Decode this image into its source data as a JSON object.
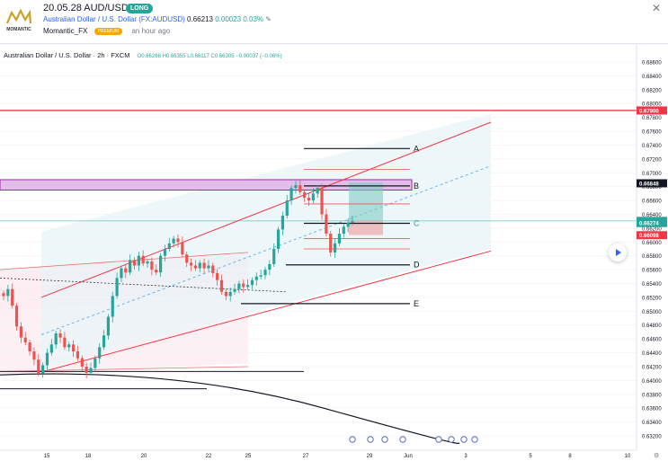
{
  "header": {
    "brand": "MOMANTIC",
    "title": "20.05.28 AUD/USD",
    "badge": "LONG",
    "symbol_name": "Australian Dollar / U.S. Dollar (FX:AUDUSD)",
    "price": "0.66213",
    "change": "0.00023",
    "change_pct": "0.03%",
    "author": "Momantic_FX",
    "author_badge": "PREMIUM",
    "time_ago": "an hour ago"
  },
  "legend": {
    "symbol": "Australian Dollar / U.S. Dollar · 2h · FXCM",
    "ohlc": "O0.66268  H0.66355  L0.66117  C0.66305  −0.00037 (−0.06%)"
  },
  "colors": {
    "up": "#26a69a",
    "down": "#ef5350",
    "channel": "#f23645",
    "zone": "#9c27b0",
    "bg_up": "#e6f4f6"
  },
  "chart_data": {
    "type": "candlestick",
    "symbol": "AUDUSD",
    "interval": "2h",
    "ylim": [
      0.631,
      0.687
    ],
    "y_ticks": [
      "0.68600",
      "0.68400",
      "0.68200",
      "0.68000",
      "0.67800",
      "0.67600",
      "0.67400",
      "0.67200",
      "0.67000",
      "0.66800",
      "0.66600",
      "0.66400",
      "0.66200",
      "0.66000",
      "0.65800",
      "0.65600",
      "0.65400",
      "0.65200",
      "0.65000",
      "0.64800",
      "0.64600",
      "0.64400",
      "0.64200",
      "0.64000",
      "0.63800",
      "0.63600",
      "0.63400",
      "0.63200"
    ],
    "x_ticks": [
      "15",
      "18",
      "20",
      "22",
      "25",
      "27",
      "29",
      "Jun",
      "3",
      "5",
      "8",
      "10"
    ],
    "price_labels": [
      {
        "value": 0.679,
        "label": "0.67900",
        "color": "#f23645"
      },
      {
        "value": 0.66848,
        "label": "0.66848",
        "color": "#131722"
      },
      {
        "value": 0.66305,
        "label": "0.66305",
        "color": "#26a69a"
      },
      {
        "value": 0.66274,
        "label": "0.66274",
        "color": "#26a69a"
      },
      {
        "value": 0.66098,
        "label": "0.66098",
        "color": "#f23645"
      }
    ],
    "levels": [
      {
        "label": "A",
        "value": 0.6735
      },
      {
        "label": "B",
        "value": 0.6681
      },
      {
        "label": "C",
        "value": 0.6627
      },
      {
        "label": "D",
        "value": 0.6567
      },
      {
        "label": "E",
        "value": 0.6511
      }
    ],
    "closes": [
      0.6522,
      0.6532,
      0.6508,
      0.6478,
      0.6462,
      0.6455,
      0.6442,
      0.643,
      0.641,
      0.6422,
      0.644,
      0.6452,
      0.6468,
      0.6462,
      0.6448,
      0.6452,
      0.6442,
      0.6432,
      0.642,
      0.6411,
      0.6418,
      0.6432,
      0.6448,
      0.6465,
      0.6492,
      0.6522,
      0.6548,
      0.6562,
      0.6556,
      0.6574,
      0.6566,
      0.658,
      0.6569,
      0.6572,
      0.656,
      0.6556,
      0.658,
      0.659,
      0.6598,
      0.6605,
      0.66,
      0.6582,
      0.657,
      0.6566,
      0.6562,
      0.657,
      0.6562,
      0.6566,
      0.6555,
      0.6545,
      0.6528,
      0.6522,
      0.6528,
      0.6532,
      0.654,
      0.6535,
      0.6538,
      0.6545,
      0.655,
      0.6552,
      0.656,
      0.6568,
      0.659,
      0.6618,
      0.6638,
      0.666,
      0.6678,
      0.6682,
      0.6672,
      0.6664,
      0.666,
      0.667,
      0.6678,
      0.664,
      0.6612,
      0.6585,
      0.6598,
      0.6612,
      0.6622,
      0.6628,
      0.663
    ]
  }
}
